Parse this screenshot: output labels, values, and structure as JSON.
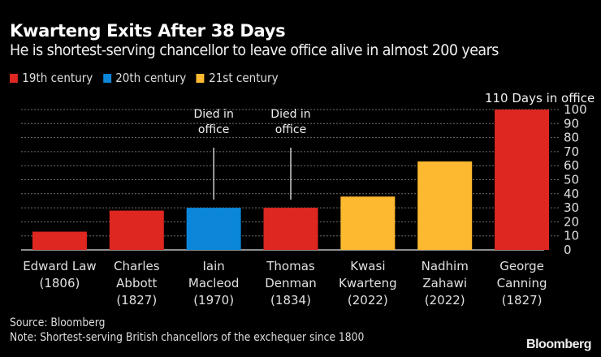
{
  "chart_data": {
    "type": "bar",
    "title": "Kwarteng Exits After 38 Days",
    "subtitle": "He is shortest-serving chancellor to leave office alive in almost 200 years",
    "xlabel": "",
    "ylabel": "Days in office",
    "ylim": [
      0,
      100
    ],
    "yticks": [
      0,
      10,
      20,
      30,
      40,
      50,
      60,
      70,
      80,
      90,
      100
    ],
    "ytick_labels": [
      "0",
      "10",
      "20",
      "30",
      "40",
      "50",
      "60",
      "70",
      "80",
      "90",
      "100"
    ],
    "y_axis_side": "right",
    "grid": true,
    "legend_position": "top-left",
    "legend": [
      {
        "name": "19th century",
        "color": "#dd2720"
      },
      {
        "name": "20th century",
        "color": "#0b86d9"
      },
      {
        "name": "21st century",
        "color": "#fdb930"
      }
    ],
    "categories": [
      [
        "Edward Law",
        "(1806)"
      ],
      [
        "Charles",
        "Abbott",
        "(1827)"
      ],
      [
        "Iain",
        "Macleod",
        "(1970)"
      ],
      [
        "Thomas",
        "Denman",
        "(1834)"
      ],
      [
        "Kwasi",
        "Kwarteng",
        "(2022)"
      ],
      [
        "Nadhim",
        "Zahawi",
        "(2022)"
      ],
      [
        "George",
        "Canning",
        "(1827)"
      ]
    ],
    "values": [
      13,
      28,
      30,
      30,
      38,
      63,
      110
    ],
    "century": [
      "19th century",
      "19th century",
      "20th century",
      "19th century",
      "21st century",
      "21st century",
      "19th century"
    ],
    "annotations": [
      {
        "category_index": 2,
        "text": [
          "Died in",
          "office"
        ]
      },
      {
        "category_index": 3,
        "text": [
          "Died in",
          "office"
        ]
      },
      {
        "category_index": 6,
        "text": [
          "110 Days in office"
        ]
      }
    ]
  },
  "footer": {
    "source": "Source: Bloomberg",
    "note": "Note: Shortest-serving British chancellors of the exchequer since 1800",
    "brand": "Bloomberg"
  },
  "colors": {
    "background": "#000000",
    "grid": "#6e6e6e",
    "baseline": "#bdbdbd"
  }
}
